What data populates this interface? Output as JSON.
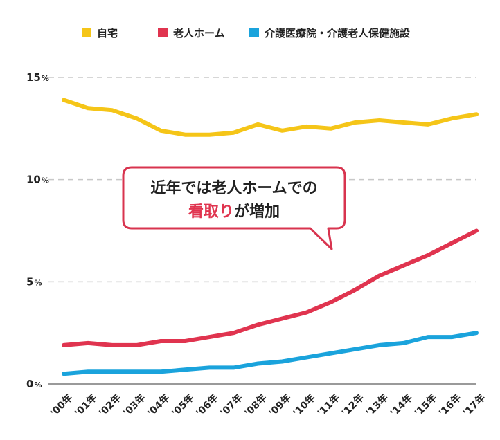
{
  "chart_data": {
    "type": "line",
    "title": "",
    "xlabel": "",
    "ylabel": "",
    "y_unit": "%",
    "ylim": [
      0,
      15
    ],
    "yticks": [
      {
        "value": 0,
        "label": "0",
        "unit": "%"
      },
      {
        "value": 5,
        "label": "5",
        "unit": "%"
      },
      {
        "value": 10,
        "label": "10",
        "unit": "%"
      },
      {
        "value": 15,
        "label": "15",
        "unit": "%"
      }
    ],
    "grid": true,
    "legend_position": "top",
    "categories": [
      "'00年",
      "'01年",
      "'02年",
      "'03年",
      "'04年",
      "'05年",
      "'06年",
      "'07年",
      "'08年",
      "'09年",
      "'10年",
      "'11年",
      "'12年",
      "'13年",
      "'14年",
      "'15年",
      "'16年",
      "'17年"
    ],
    "series": [
      {
        "name": "自宅",
        "color": "#f5c518",
        "values": [
          13.9,
          13.5,
          13.4,
          13.0,
          12.4,
          12.2,
          12.2,
          12.3,
          12.7,
          12.4,
          12.6,
          12.5,
          12.8,
          12.9,
          12.8,
          12.7,
          13.0,
          13.2
        ]
      },
      {
        "name": "老人ホーム",
        "color": "#e0344f",
        "values": [
          1.9,
          2.0,
          1.9,
          1.9,
          2.1,
          2.1,
          2.3,
          2.5,
          2.9,
          3.2,
          3.5,
          4.0,
          4.6,
          5.3,
          5.8,
          6.3,
          6.9,
          7.5
        ]
      },
      {
        "name": "介護医療院・介護老人保健施設",
        "color": "#1aa3dc",
        "values": [
          0.5,
          0.6,
          0.6,
          0.6,
          0.6,
          0.7,
          0.8,
          0.8,
          1.0,
          1.1,
          1.3,
          1.5,
          1.7,
          1.9,
          2.0,
          2.3,
          2.3,
          2.5
        ]
      }
    ],
    "annotation": {
      "line1": "近年では老人ホームでの",
      "line2_accent": "看取り",
      "line2_rest": "が増加",
      "accent_color": "#e0344f",
      "border_color": "#d8344f"
    }
  }
}
